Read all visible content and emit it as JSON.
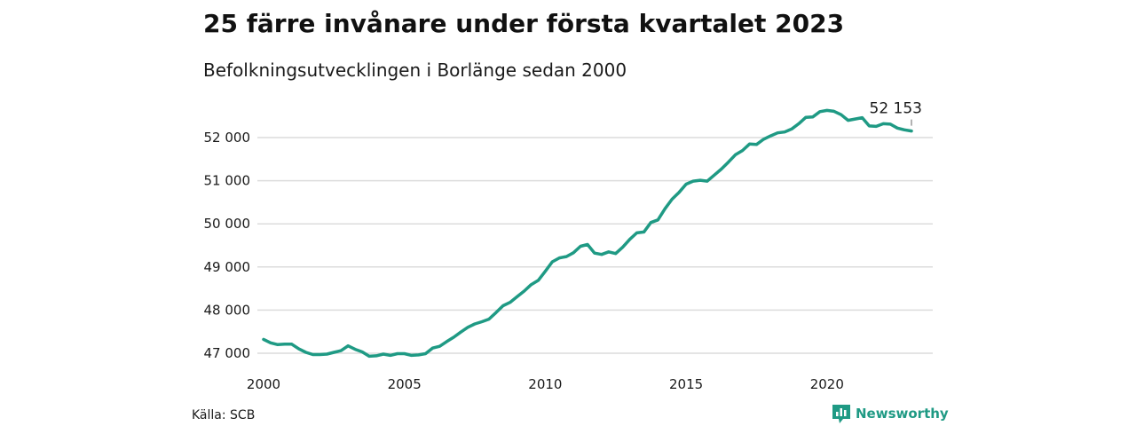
{
  "colors": {
    "series": "#1f9a84",
    "grid": "#dcdcdc",
    "text": "#1a1a1a",
    "brand": "#1f9a84"
  },
  "source": "Källa: SCB",
  "brand": {
    "name": "Newsworthy",
    "icon": "newsworthy-logo-icon"
  },
  "chart_data": {
    "type": "line",
    "title": "25 färre invånare under första kvartalet 2023",
    "subtitle": "Befolkningsutvecklingen i Borlänge sedan 2000",
    "xlabel": "",
    "ylabel": "",
    "xlim": [
      2000,
      2023
    ],
    "ylim": [
      46800,
      52800
    ],
    "x_ticks": [
      2000,
      2005,
      2010,
      2015,
      2020
    ],
    "x_tick_labels": [
      "2000",
      "2005",
      "2010",
      "2015",
      "2020"
    ],
    "y_ticks": [
      47000,
      48000,
      49000,
      50000,
      51000,
      52000
    ],
    "y_tick_labels": [
      "47 000",
      "48 000",
      "49 000",
      "50 000",
      "51 000",
      "52 000"
    ],
    "grid": true,
    "legend": "none",
    "end_label": "52 153",
    "series": [
      {
        "x": [
          2000.0,
          2000.25,
          2000.5,
          2000.75,
          2001.0,
          2001.25,
          2001.5,
          2001.75,
          2002.0,
          2002.25,
          2002.5,
          2002.75,
          2003.0,
          2003.25,
          2003.5,
          2003.75,
          2004.0,
          2004.25,
          2004.5,
          2004.75,
          2005.0,
          2005.25,
          2005.5,
          2005.75,
          2006.0,
          2006.25,
          2006.5,
          2006.75,
          2007.0,
          2007.25,
          2007.5,
          2007.75,
          2008.0,
          2008.25,
          2008.5,
          2008.75,
          2009.0,
          2009.25,
          2009.5,
          2009.75,
          2010.0,
          2010.25,
          2010.5,
          2010.75,
          2011.0,
          2011.25,
          2011.5,
          2011.75,
          2012.0,
          2012.25,
          2012.5,
          2012.75,
          2013.0,
          2013.25,
          2013.5,
          2013.75,
          2014.0,
          2014.25,
          2014.5,
          2014.75,
          2015.0,
          2015.25,
          2015.5,
          2015.75,
          2016.0,
          2016.25,
          2016.5,
          2016.75,
          2017.0,
          2017.25,
          2017.5,
          2017.75,
          2018.0,
          2018.25,
          2018.5,
          2018.75,
          2019.0,
          2019.25,
          2019.5,
          2019.75,
          2020.0,
          2020.25,
          2020.5,
          2020.75,
          2021.0,
          2021.25,
          2021.5,
          2021.75,
          2022.0,
          2022.25,
          2022.5,
          2022.75,
          2023.0
        ],
        "values": [
          47320,
          47240,
          47200,
          47210,
          47210,
          47100,
          47020,
          46970,
          46970,
          46980,
          47020,
          47060,
          47170,
          47090,
          47030,
          46930,
          46940,
          46980,
          46950,
          46990,
          46990,
          46950,
          46960,
          46990,
          47120,
          47160,
          47270,
          47370,
          47490,
          47600,
          47680,
          47730,
          47790,
          47940,
          48100,
          48180,
          48310,
          48440,
          48590,
          48690,
          48900,
          49120,
          49210,
          49240,
          49330,
          49480,
          49520,
          49320,
          49290,
          49350,
          49310,
          49460,
          49640,
          49790,
          49810,
          50030,
          50090,
          50350,
          50570,
          50730,
          50920,
          50990,
          51010,
          50990,
          51130,
          51270,
          51430,
          51600,
          51700,
          51850,
          51840,
          51960,
          52040,
          52110,
          52130,
          52200,
          52320,
          52470,
          52480,
          52600,
          52630,
          52610,
          52530,
          52400,
          52430,
          52460,
          52270,
          52260,
          52320,
          52310,
          52220,
          52180,
          52153
        ]
      }
    ]
  }
}
